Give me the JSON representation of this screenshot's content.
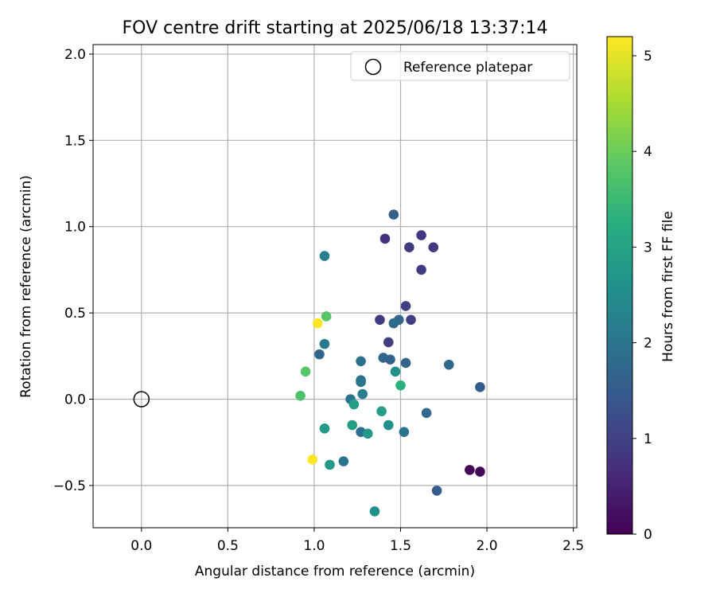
{
  "chart_data": {
    "type": "scatter",
    "title": "FOV centre drift starting at 2025/06/18 13:37:14",
    "xlabel": "Angular distance from reference (arcmin)",
    "ylabel": "Rotation from reference (arcmin)",
    "xlim": [
      -0.28,
      2.52
    ],
    "ylim": [
      -0.745,
      2.055
    ],
    "xticks": [
      0.0,
      0.5,
      1.0,
      1.5,
      2.0,
      2.5
    ],
    "xtick_labels": [
      "0.0",
      "0.5",
      "1.0",
      "1.5",
      "2.0",
      "2.5"
    ],
    "yticks": [
      -0.5,
      0.0,
      0.5,
      1.0,
      1.5,
      2.0
    ],
    "ytick_labels": [
      "−0.5",
      "0.0",
      "0.5",
      "1.0",
      "1.5",
      "2.0"
    ],
    "grid": true,
    "legend": {
      "placement": "top-right",
      "entries": [
        {
          "label": "Reference platepar",
          "marker": "open-circle",
          "color": "#000000"
        }
      ]
    },
    "reference": {
      "x": 0.0,
      "y": 0.0
    },
    "colorbar": {
      "label": "Hours from first FF file",
      "colormap": "viridis",
      "range": [
        0,
        5.2
      ],
      "ticks": [
        0,
        1,
        2,
        3,
        4,
        5
      ],
      "tick_labels": [
        "0",
        "1",
        "2",
        "3",
        "4",
        "5"
      ]
    },
    "series": [
      {
        "points": [
          {
            "x": 1.9,
            "y": -0.41,
            "c": 0.05
          },
          {
            "x": 1.96,
            "y": -0.42,
            "c": 0.08
          },
          {
            "x": 1.41,
            "y": 0.93,
            "c": 0.75
          },
          {
            "x": 1.62,
            "y": 0.95,
            "c": 0.85
          },
          {
            "x": 1.55,
            "y": 0.88,
            "c": 0.9
          },
          {
            "x": 1.69,
            "y": 0.88,
            "c": 0.85
          },
          {
            "x": 1.62,
            "y": 0.75,
            "c": 0.9
          },
          {
            "x": 1.53,
            "y": 0.54,
            "c": 0.95
          },
          {
            "x": 1.38,
            "y": 0.46,
            "c": 0.9
          },
          {
            "x": 1.56,
            "y": 0.46,
            "c": 0.95
          },
          {
            "x": 1.43,
            "y": 0.33,
            "c": 0.95
          },
          {
            "x": 1.46,
            "y": 1.07,
            "c": 1.6
          },
          {
            "x": 1.71,
            "y": -0.53,
            "c": 1.5
          },
          {
            "x": 1.96,
            "y": 0.07,
            "c": 1.55
          },
          {
            "x": 1.78,
            "y": 0.2,
            "c": 1.75
          },
          {
            "x": 1.65,
            "y": -0.08,
            "c": 1.75
          },
          {
            "x": 1.53,
            "y": 0.21,
            "c": 1.65
          },
          {
            "x": 1.49,
            "y": 0.46,
            "c": 1.7
          },
          {
            "x": 1.46,
            "y": 0.44,
            "c": 1.8
          },
          {
            "x": 1.4,
            "y": 0.24,
            "c": 1.7
          },
          {
            "x": 1.44,
            "y": 0.23,
            "c": 1.65
          },
          {
            "x": 1.27,
            "y": 0.22,
            "c": 1.9
          },
          {
            "x": 1.27,
            "y": 0.11,
            "c": 1.85
          },
          {
            "x": 1.27,
            "y": 0.1,
            "c": 2.0
          },
          {
            "x": 1.21,
            "y": 0.0,
            "c": 2.0
          },
          {
            "x": 1.28,
            "y": 0.03,
            "c": 2.2
          },
          {
            "x": 1.52,
            "y": -0.19,
            "c": 2.0
          },
          {
            "x": 1.27,
            "y": -0.19,
            "c": 1.9
          },
          {
            "x": 1.03,
            "y": 0.26,
            "c": 1.7
          },
          {
            "x": 1.06,
            "y": 0.32,
            "c": 2.1
          },
          {
            "x": 1.06,
            "y": 0.83,
            "c": 2.2
          },
          {
            "x": 1.47,
            "y": 0.16,
            "c": 2.6
          },
          {
            "x": 1.17,
            "y": -0.36,
            "c": 2.0
          },
          {
            "x": 1.35,
            "y": -0.65,
            "c": 2.6
          },
          {
            "x": 1.43,
            "y": -0.15,
            "c": 2.6
          },
          {
            "x": 1.39,
            "y": -0.07,
            "c": 2.9
          },
          {
            "x": 1.31,
            "y": -0.2,
            "c": 2.75
          },
          {
            "x": 1.23,
            "y": -0.03,
            "c": 2.9
          },
          {
            "x": 1.22,
            "y": -0.15,
            "c": 2.9
          },
          {
            "x": 1.06,
            "y": -0.17,
            "c": 2.8
          },
          {
            "x": 1.09,
            "y": -0.38,
            "c": 2.8
          },
          {
            "x": 1.5,
            "y": 0.08,
            "c": 3.3
          },
          {
            "x": 0.92,
            "y": 0.02,
            "c": 3.7
          },
          {
            "x": 0.95,
            "y": 0.16,
            "c": 3.8
          },
          {
            "x": 1.07,
            "y": 0.48,
            "c": 3.8
          },
          {
            "x": 1.02,
            "y": 0.44,
            "c": 5.2
          },
          {
            "x": 0.99,
            "y": -0.35,
            "c": 5.2
          }
        ]
      }
    ]
  }
}
